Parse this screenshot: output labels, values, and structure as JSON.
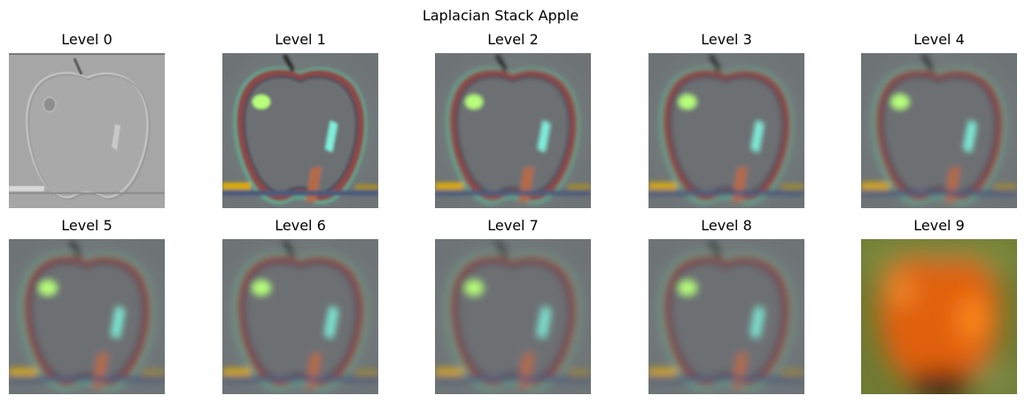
{
  "title": "Laplacian Stack Apple",
  "panels": [
    {
      "label": "Level 0",
      "style": "edge"
    },
    {
      "label": "Level 1",
      "style": "band"
    },
    {
      "label": "Level 2",
      "style": "band"
    },
    {
      "label": "Level 3",
      "style": "band"
    },
    {
      "label": "Level 4",
      "style": "band"
    },
    {
      "label": "Level 5",
      "style": "band"
    },
    {
      "label": "Level 6",
      "style": "band"
    },
    {
      "label": "Level 7",
      "style": "band"
    },
    {
      "label": "Level 8",
      "style": "band"
    },
    {
      "label": "Level 9",
      "style": "residual"
    }
  ],
  "colors": {
    "edge_bg": "#a6a6a6",
    "band_bg": "#6e7476",
    "band_rim": "#8c4a4a",
    "band_glow": "#5fa890",
    "highlight": "#b8ff7a",
    "cyan_streak": "#7ff0dc",
    "residual_bg": "#6f7a33",
    "residual_apple": "#e0600f"
  }
}
